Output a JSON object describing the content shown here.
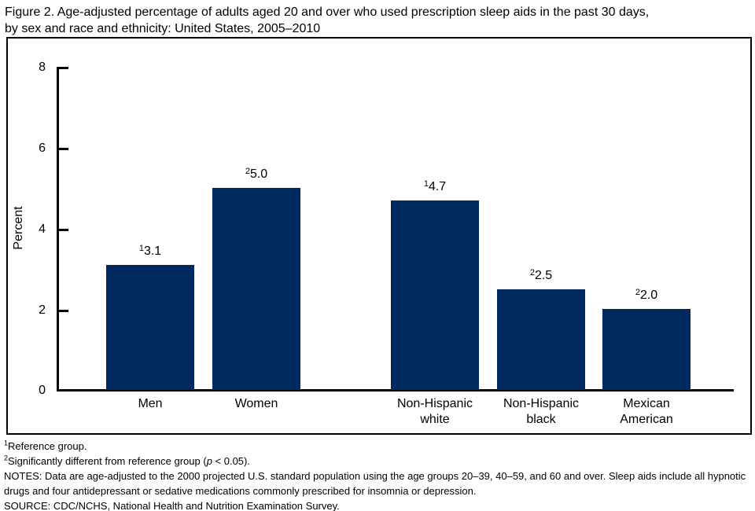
{
  "title": {
    "line1": "Figure 2. Age-adjusted percentage of adults aged 20 and over who used prescription sleep aids in the past 30 days,",
    "line2": "by sex and race and ethnicity: United States, 2005–2010"
  },
  "chart_data": {
    "type": "bar",
    "title": "Age-adjusted percentage of adults aged 20 and over who used prescription sleep aids in the past 30 days, by sex and race and ethnicity: United States, 2005–2010",
    "xlabel": "",
    "ylabel": "Percent",
    "ylim": [
      0,
      8
    ],
    "yticks": [
      0,
      2,
      4,
      6,
      8
    ],
    "yticks_display": [
      "8",
      "6",
      "4",
      "2",
      "0"
    ],
    "grid": false,
    "legend": "none",
    "bar_color": "#002A5E",
    "categories": [
      "Men",
      "Women",
      "Non-Hispanic white",
      "Non-Hispanic black",
      "Mexican American"
    ],
    "values": [
      3.1,
      5.0,
      4.7,
      2.5,
      2.0
    ],
    "labels": [
      {
        "marker": "1",
        "value": "3.1"
      },
      {
        "marker": "2",
        "value": "5.0"
      },
      {
        "marker": "1",
        "value": "4.7"
      },
      {
        "marker": "2",
        "value": "2.5"
      },
      {
        "marker": "2",
        "value": "2.0"
      }
    ]
  },
  "footnotes": {
    "ref": {
      "marker": "1",
      "text": "Reference group."
    },
    "sig": {
      "marker": "2",
      "pre": "Significantly different from reference group (",
      "italic": "p",
      "post": " < 0.05)."
    },
    "notes": "NOTES: Data are age-adjusted to the 2000 projected U.S. standard population using the age groups 20–39, 40–59, and 60 and over. Sleep aids include all hypnotic drugs and four antidepressant or sedative medications commonly prescribed for insomnia or depression.",
    "source": "SOURCE: CDC/NCHS, National Health and Nutrition Examination Survey."
  }
}
